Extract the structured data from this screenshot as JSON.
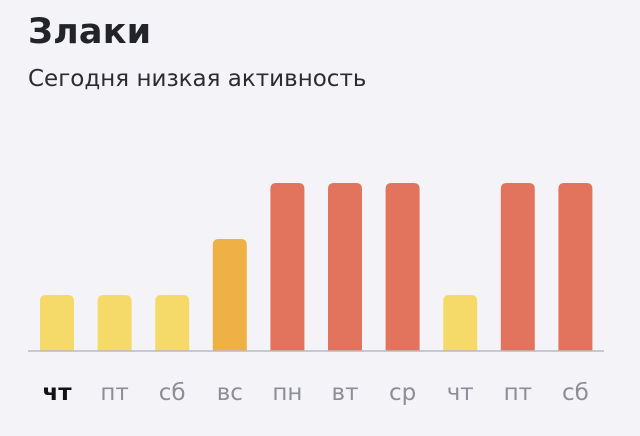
{
  "title": "Злаки",
  "subtitle": "Сегодня низкая активность",
  "colors": {
    "low": "#f5da6a",
    "medium": "#efb046",
    "high": "#e2735c",
    "baseline": "#b9b9c6",
    "background": "#f4f4f8"
  },
  "chart_data": {
    "type": "bar",
    "title": "Злаки",
    "subtitle": "Сегодня низкая активность",
    "categories": [
      "чт",
      "пт",
      "сб",
      "вс",
      "пн",
      "вт",
      "ср",
      "чт",
      "пт",
      "сб"
    ],
    "values": [
      1,
      1,
      1,
      2,
      3,
      3,
      3,
      1,
      3,
      3
    ],
    "levels": [
      "low",
      "low",
      "low",
      "medium",
      "high",
      "high",
      "high",
      "low",
      "high",
      "high"
    ],
    "current_index": 0,
    "ylim": [
      0,
      3
    ],
    "grid": false,
    "legend": "none"
  }
}
